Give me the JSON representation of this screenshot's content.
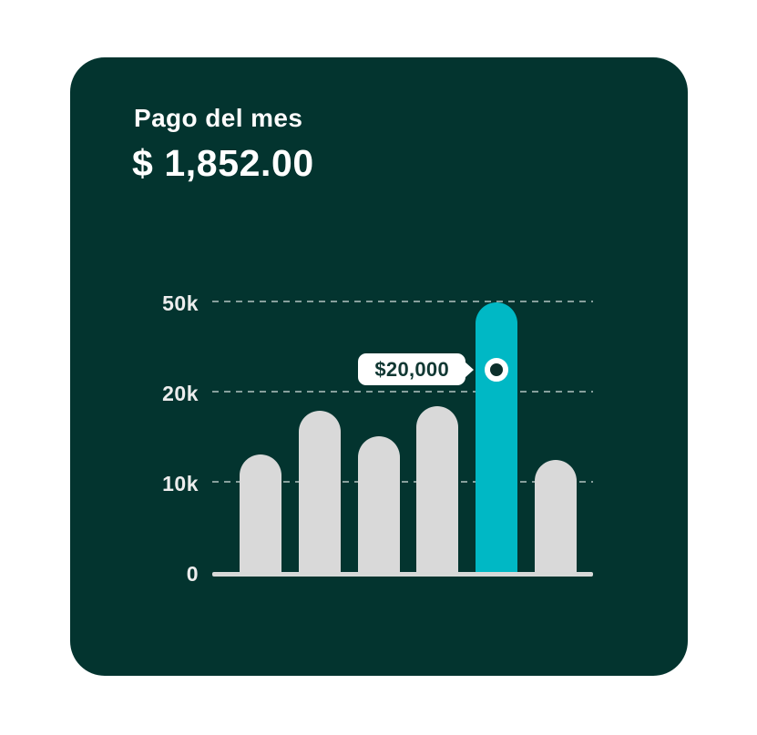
{
  "card": {
    "title": "Pago del mes",
    "amount": "$ 1,852.00"
  },
  "chart_data": {
    "type": "bar",
    "title": "Pago del mes",
    "xlabel": "",
    "ylabel": "",
    "legend": "none",
    "grid": "dashed horizontal lines at each tick",
    "y_axis": {
      "tick_labels": [
        "0",
        "10k",
        "20k",
        "50k"
      ],
      "tick_values_k": [
        0,
        10,
        20,
        50
      ],
      "note": "stylized non-linear axis: ticks are evenly spaced"
    },
    "categories": [
      "",
      "",
      "",
      "",
      "",
      ""
    ],
    "bars": [
      {
        "value_k": 13.0,
        "highlighted": false
      },
      {
        "value_k": 17.9,
        "highlighted": false
      },
      {
        "value_k": 15.0,
        "highlighted": false
      },
      {
        "value_k": 18.4,
        "highlighted": false
      },
      {
        "value_k": 49.6,
        "highlighted": true
      },
      {
        "value_k": 12.4,
        "highlighted": false
      }
    ],
    "highlight": {
      "bar_index": 4,
      "tooltip_label": "$20,000",
      "marker_value_k": 27.3,
      "marker_style": "white ring with dark center"
    },
    "colors": {
      "card_background": "#03342f",
      "accent": "#00b8c5",
      "bar_gray": "#d9d9d9",
      "baseline": "#d7d9d8",
      "text": "#ffffff",
      "tooltip_bg": "#ffffff",
      "tooltip_text": "#113833"
    }
  }
}
